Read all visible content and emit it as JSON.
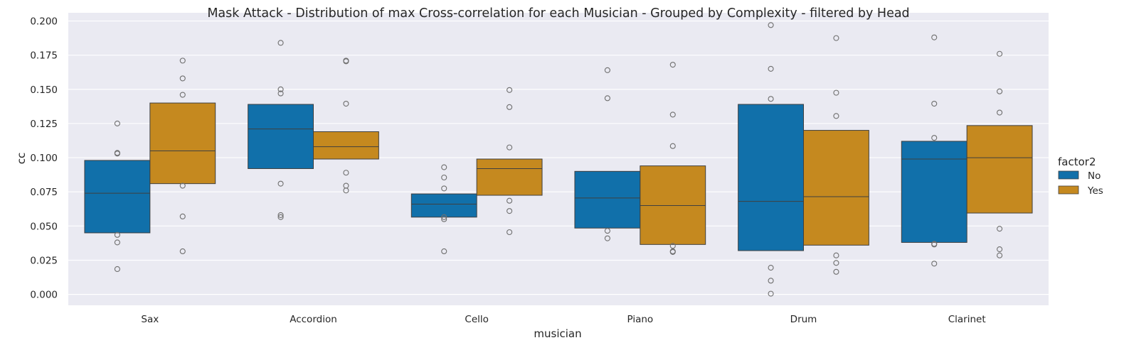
{
  "chart_data": {
    "type": "boxplot",
    "title": "Mask Attack - Distribution of max Cross-correlation for each Musician - Grouped by Complexity - filtered by Head",
    "xlabel": "musician",
    "ylabel": "cc",
    "ylim": [
      -0.008,
      0.206
    ],
    "yticks": [
      "0.000",
      "0.025",
      "0.050",
      "0.075",
      "0.100",
      "0.125",
      "0.150",
      "0.175",
      "0.200"
    ],
    "categories": [
      "Sax",
      "Accordion",
      "Cello",
      "Piano",
      "Drum",
      "Clarinet"
    ],
    "grid": true,
    "legend": {
      "title": "factor2",
      "placement": "right"
    },
    "series": [
      {
        "name": "No",
        "color": "#1170aa",
        "boxes": [
          {
            "q1": 0.045,
            "median": 0.074,
            "q3": 0.098,
            "outliers": [
              0.125,
              0.1035,
              0.103,
              0.0435,
              0.038,
              0.0185
            ]
          },
          {
            "q1": 0.092,
            "median": 0.121,
            "q3": 0.139,
            "outliers": [
              0.184,
              0.15,
              0.147,
              0.081,
              0.058,
              0.0565
            ]
          },
          {
            "q1": 0.0565,
            "median": 0.066,
            "q3": 0.0735,
            "outliers": [
              0.093,
              0.0855,
              0.0775,
              0.0565,
              0.055,
              0.0315
            ]
          },
          {
            "q1": 0.0485,
            "median": 0.0705,
            "q3": 0.09,
            "outliers": [
              0.164,
              0.1435,
              0.0465,
              0.041
            ]
          },
          {
            "q1": 0.032,
            "median": 0.068,
            "q3": 0.139,
            "outliers": [
              0.197,
              0.165,
              0.143,
              0.0195,
              0.01,
              0.0005
            ]
          },
          {
            "q1": 0.038,
            "median": 0.099,
            "q3": 0.112,
            "outliers": [
              0.188,
              0.1395,
              0.1145,
              0.037,
              0.0365,
              0.0225
            ]
          }
        ]
      },
      {
        "name": "Yes",
        "color": "#c5891f",
        "boxes": [
          {
            "q1": 0.081,
            "median": 0.105,
            "q3": 0.14,
            "outliers": [
              0.171,
              0.158,
              0.146,
              0.0795,
              0.057,
              0.0315
            ]
          },
          {
            "q1": 0.099,
            "median": 0.108,
            "q3": 0.119,
            "outliers": [
              0.171,
              0.1705,
              0.1395,
              0.089,
              0.0795,
              0.076
            ]
          },
          {
            "q1": 0.0725,
            "median": 0.092,
            "q3": 0.099,
            "outliers": [
              0.1495,
              0.137,
              0.1075,
              0.0685,
              0.061,
              0.0455
            ]
          },
          {
            "q1": 0.0365,
            "median": 0.065,
            "q3": 0.094,
            "outliers": [
              0.168,
              0.1315,
              0.1085,
              0.0355,
              0.031,
              0.0315
            ]
          },
          {
            "q1": 0.036,
            "median": 0.0715,
            "q3": 0.12,
            "outliers": [
              0.1875,
              0.1475,
              0.1305,
              0.0285,
              0.023,
              0.0165
            ]
          },
          {
            "q1": 0.0595,
            "median": 0.1,
            "q3": 0.1235,
            "outliers": [
              0.176,
              0.1485,
              0.133,
              0.048,
              0.033,
              0.0285
            ]
          }
        ]
      }
    ]
  }
}
